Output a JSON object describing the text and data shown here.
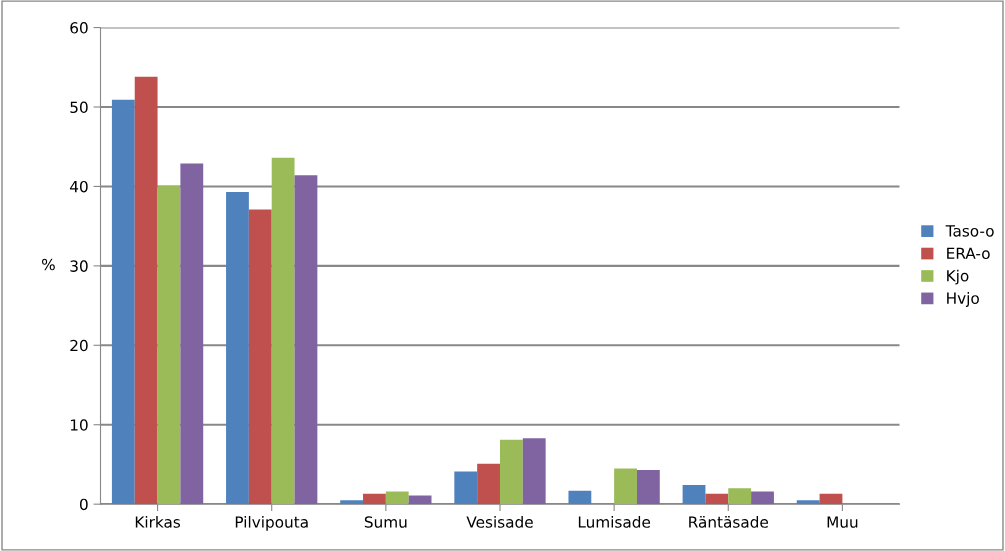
{
  "chart_data": {
    "type": "bar",
    "ylabel": "%",
    "categories": [
      "Kirkas",
      "Pilvipouta",
      "Sumu",
      "Vesisade",
      "Lumisade",
      "Räntäsade",
      "Muu"
    ],
    "series": [
      {
        "name": "Taso-o",
        "color": "#4f81bd",
        "values": [
          50.9,
          39.3,
          0.5,
          4.1,
          1.7,
          2.4,
          0.5
        ]
      },
      {
        "name": "ERA-o",
        "color": "#c0504d",
        "values": [
          53.8,
          37.1,
          1.3,
          5.1,
          null,
          1.3,
          1.3
        ]
      },
      {
        "name": "Kjo",
        "color": "#9bbb59",
        "values": [
          40.1,
          43.6,
          1.6,
          8.1,
          4.5,
          2.0,
          null
        ]
      },
      {
        "name": "Hvjo",
        "color": "#8064a2",
        "values": [
          42.9,
          41.4,
          1.1,
          8.3,
          4.3,
          1.6,
          null
        ]
      }
    ],
    "ylim": [
      0,
      60
    ],
    "yticks": [
      0,
      10,
      20,
      30,
      40,
      50,
      60
    ],
    "grid": "y",
    "legend": "right"
  }
}
